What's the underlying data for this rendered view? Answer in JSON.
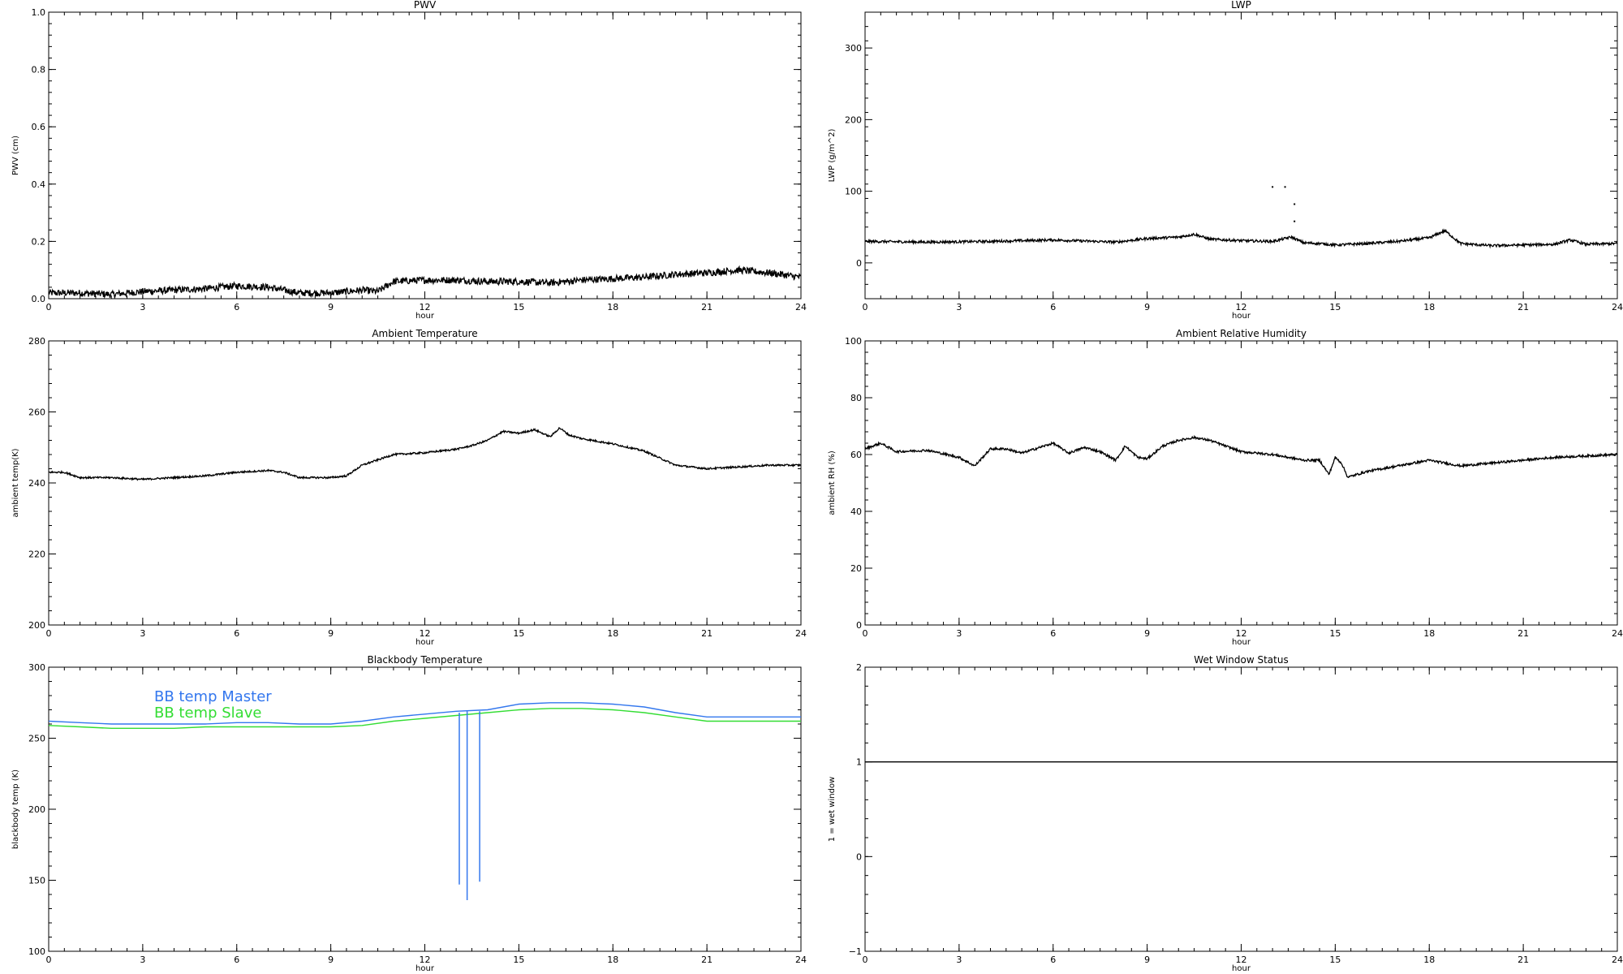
{
  "chart_data": [
    {
      "type": "line",
      "title": "PWV",
      "xlabel": "hour",
      "ylabel": "PWV (cm)",
      "xlim": [
        0,
        24
      ],
      "ylim": [
        0.0,
        1.0
      ],
      "x_ticks": [
        "0",
        "3",
        "6",
        "9",
        "12",
        "15",
        "18",
        "21",
        "24"
      ],
      "y_ticks": [
        "0.0",
        "0.2",
        "0.4",
        "0.6",
        "0.8",
        "1.0"
      ],
      "y_tick_values": [
        0.0,
        0.2,
        0.4,
        0.6,
        0.8,
        1.0
      ],
      "noise": 0.012,
      "series": [
        {
          "color": "#000000",
          "x": [
            0,
            1,
            2,
            3,
            4,
            5,
            6,
            7,
            8,
            9,
            10,
            10.5,
            11,
            12,
            13,
            14,
            15,
            16,
            17,
            18,
            19,
            20,
            21,
            22,
            23,
            24
          ],
          "y": [
            0.02,
            0.02,
            0.015,
            0.025,
            0.03,
            0.035,
            0.045,
            0.04,
            0.02,
            0.02,
            0.03,
            0.025,
            0.06,
            0.065,
            0.065,
            0.06,
            0.06,
            0.055,
            0.065,
            0.07,
            0.075,
            0.085,
            0.09,
            0.1,
            0.09,
            0.075
          ]
        }
      ]
    },
    {
      "type": "line",
      "title": "LWP",
      "xlabel": "hour",
      "ylabel": "LWP (g/m^2)",
      "xlim": [
        0,
        24
      ],
      "ylim": [
        -50,
        350
      ],
      "x_ticks": [
        "0",
        "3",
        "6",
        "9",
        "12",
        "15",
        "18",
        "21",
        "24"
      ],
      "y_ticks": [
        "0",
        "100",
        "200",
        "300"
      ],
      "y_tick_values": [
        0,
        100,
        200,
        300
      ],
      "noise": 1.8,
      "series": [
        {
          "color": "#000000",
          "x": [
            0,
            2,
            4,
            6,
            8,
            9,
            10,
            10.5,
            11,
            12,
            13,
            13.6,
            14,
            14.5,
            15,
            16,
            17,
            18,
            18.5,
            19,
            20,
            21,
            22,
            22.5,
            23,
            24
          ],
          "y": [
            30,
            29,
            30,
            32,
            29,
            34,
            36,
            40,
            33,
            31,
            30,
            36,
            28,
            27,
            25,
            27,
            30,
            35,
            45,
            27,
            24,
            25,
            26,
            32,
            26,
            27
          ]
        }
      ],
      "scatter_points": [
        {
          "x": 13.0,
          "y": 106
        },
        {
          "x": 13.4,
          "y": 106
        },
        {
          "x": 13.7,
          "y": 82
        },
        {
          "x": 13.7,
          "y": 58
        }
      ]
    },
    {
      "type": "line",
      "title": "Ambient Temperature",
      "xlabel": "hour",
      "ylabel": "ambient temp(K)",
      "xlim": [
        0,
        24
      ],
      "ylim": [
        200,
        280
      ],
      "x_ticks": [
        "0",
        "3",
        "6",
        "9",
        "12",
        "15",
        "18",
        "21",
        "24"
      ],
      "y_ticks": [
        "200",
        "220",
        "240",
        "260",
        "280"
      ],
      "y_tick_values": [
        200,
        220,
        240,
        260,
        280
      ],
      "noise": 0.25,
      "series": [
        {
          "color": "#000000",
          "x": [
            0,
            0.5,
            1,
            2,
            3,
            4,
            5,
            6,
            7,
            7.5,
            8,
            9,
            9.5,
            10,
            11,
            12,
            13,
            13.5,
            14,
            14.5,
            15,
            15.5,
            16,
            16.3,
            16.6,
            17,
            18,
            19,
            20,
            21,
            22,
            23,
            24
          ],
          "y": [
            243,
            243,
            241.5,
            241.5,
            241,
            241.5,
            242,
            243,
            243.5,
            243,
            241.5,
            241.5,
            242,
            245,
            248,
            248.5,
            249.5,
            250.5,
            252,
            254.5,
            254,
            255,
            253,
            255.5,
            253.5,
            252.5,
            251,
            249,
            245,
            244,
            244.5,
            245,
            245
          ]
        }
      ]
    },
    {
      "type": "line",
      "title": "Ambient Relative Humidity",
      "xlabel": "hour",
      "ylabel": "ambient RH (%)",
      "xlim": [
        0,
        24
      ],
      "ylim": [
        0,
        100
      ],
      "x_ticks": [
        "0",
        "3",
        "6",
        "9",
        "12",
        "15",
        "18",
        "21",
        "24"
      ],
      "y_ticks": [
        "0",
        "20",
        "40",
        "60",
        "80",
        "100"
      ],
      "y_tick_values": [
        0,
        20,
        40,
        60,
        80,
        100
      ],
      "noise": 0.4,
      "series": [
        {
          "color": "#000000",
          "x": [
            0,
            0.5,
            1,
            2,
            3,
            3.5,
            4,
            4.5,
            5,
            6,
            6.5,
            7,
            7.5,
            8,
            8.3,
            8.7,
            9,
            9.5,
            10,
            10.5,
            11,
            11.5,
            12,
            13,
            13.5,
            14,
            14.5,
            14.8,
            15,
            15.2,
            15.4,
            16,
            17,
            18,
            19,
            20,
            21,
            22,
            23,
            24
          ],
          "y": [
            62,
            64,
            61,
            61.5,
            59,
            56,
            62,
            62,
            60.5,
            64,
            60.5,
            62.5,
            61,
            58,
            63,
            59,
            58.5,
            63,
            65,
            66,
            65,
            63,
            61,
            60,
            59,
            58,
            58,
            53,
            59,
            57,
            52,
            54,
            56,
            58,
            56,
            57,
            58,
            59,
            59.5,
            60
          ]
        }
      ]
    },
    {
      "type": "line",
      "title": "Blackbody Temperature",
      "xlabel": "hour",
      "ylabel": "blackbody temp (K)",
      "xlim": [
        0,
        24
      ],
      "ylim": [
        100,
        300
      ],
      "x_ticks": [
        "0",
        "3",
        "6",
        "9",
        "12",
        "15",
        "18",
        "21",
        "24"
      ],
      "y_ticks": [
        "100",
        "150",
        "200",
        "250",
        "300"
      ],
      "y_tick_values": [
        100,
        150,
        200,
        250,
        300
      ],
      "noise": 0,
      "series": [
        {
          "name": "BB temp Master",
          "color": "#3377ee",
          "x": [
            0,
            1,
            2,
            3,
            4,
            5,
            6,
            7,
            8,
            9,
            10,
            11,
            12,
            13,
            14,
            15,
            16,
            17,
            18,
            19,
            20,
            21,
            22,
            23,
            24
          ],
          "y": [
            262,
            261,
            260,
            260,
            260,
            260,
            261,
            261,
            260,
            260,
            262,
            265,
            267,
            269,
            270,
            274,
            275,
            275,
            274,
            272,
            268,
            265,
            265,
            265,
            265
          ]
        },
        {
          "name": "BB temp Slave",
          "color": "#33dd33",
          "x": [
            0,
            1,
            2,
            3,
            4,
            5,
            6,
            7,
            8,
            9,
            10,
            11,
            12,
            13,
            14,
            15,
            16,
            17,
            18,
            19,
            20,
            21,
            22,
            23,
            24
          ],
          "y": [
            259,
            258,
            257,
            257,
            257,
            258,
            258,
            258,
            258,
            258,
            259,
            262,
            264,
            266,
            268,
            270,
            271,
            271,
            270,
            268,
            265,
            262,
            262,
            262,
            262
          ]
        }
      ],
      "spikes": [
        {
          "x": 13.1,
          "top": 268,
          "bottom": 147,
          "color": "#3377ee"
        },
        {
          "x": 13.35,
          "top": 269,
          "bottom": 136,
          "color": "#3377ee"
        },
        {
          "x": 13.75,
          "top": 269,
          "bottom": 149,
          "color": "#3377ee"
        }
      ],
      "legend": "top-left"
    },
    {
      "type": "line",
      "title": "Wet Window Status",
      "xlabel": "hour",
      "ylabel": "1 = wet window",
      "xlim": [
        0,
        24
      ],
      "ylim": [
        -1,
        2
      ],
      "x_ticks": [
        "0",
        "3",
        "6",
        "9",
        "12",
        "15",
        "18",
        "21",
        "24"
      ],
      "y_ticks": [
        "−1",
        "0",
        "1",
        "2"
      ],
      "y_tick_values": [
        -1,
        0,
        1,
        2
      ],
      "noise": 0,
      "series": [
        {
          "color": "#000000",
          "x": [
            0,
            24
          ],
          "y": [
            1,
            1
          ]
        }
      ]
    }
  ]
}
